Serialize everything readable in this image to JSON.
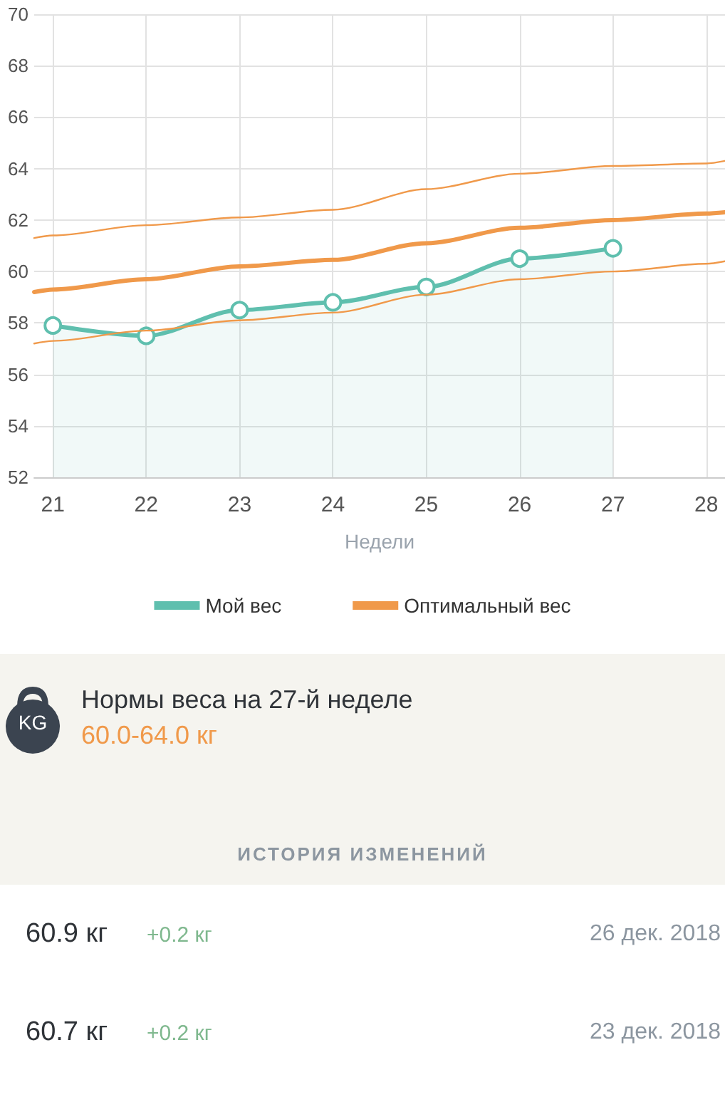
{
  "chart_data": {
    "type": "line",
    "xlabel": "Недели",
    "xlim": [
      20.8,
      28.2
    ],
    "xticks": [
      21,
      22,
      23,
      24,
      25,
      26,
      27,
      28
    ],
    "ylim": [
      52,
      70
    ],
    "yticks": [
      52,
      54,
      56,
      58,
      60,
      62,
      64,
      66,
      68,
      70
    ],
    "grid": true,
    "legend": "bottom",
    "series": [
      {
        "name": "Мой вес",
        "type": "area",
        "color": "#5fbfae",
        "marker": "circle",
        "x": [
          21,
          22,
          23,
          24,
          25,
          26,
          27
        ],
        "values": [
          57.9,
          57.5,
          58.5,
          58.8,
          59.4,
          60.5,
          60.9
        ]
      },
      {
        "name": "Оптимальный вес",
        "color": "#f0994a",
        "marker": "none",
        "x": [
          20.8,
          21,
          22,
          23,
          24,
          25,
          26,
          27,
          28,
          28.2
        ],
        "values": [
          59.2,
          59.3,
          59.7,
          60.2,
          60.45,
          61.1,
          61.7,
          62.0,
          62.25,
          62.3
        ]
      },
      {
        "color": "#f0994a",
        "marker": "none",
        "line_style": "solid",
        "x": [
          20.8,
          21,
          22,
          23,
          24,
          25,
          26,
          27,
          28,
          28.2
        ],
        "values": [
          61.3,
          61.4,
          61.8,
          62.1,
          62.4,
          63.2,
          63.8,
          64.1,
          64.2,
          64.3
        ]
      },
      {
        "color": "#f0994a",
        "marker": "none",
        "line_style": "solid",
        "x": [
          20.8,
          21,
          22,
          23,
          24,
          25,
          26,
          27,
          28,
          28.2
        ],
        "values": [
          57.2,
          57.3,
          57.7,
          58.1,
          58.4,
          59.1,
          59.7,
          60.0,
          60.3,
          60.4
        ]
      }
    ],
    "annotations": [
      "KG",
      "Нормы веса на 27-й неделе",
      "60.0-64.0 кг",
      "ИСТОРИЯ ИЗМЕНЕНИЙ",
      "60.9 кг",
      "+0.2 кг",
      "26 дек. 2018",
      "60.7 кг",
      "+0.2 кг",
      "23 дек. 2018"
    ]
  }
}
